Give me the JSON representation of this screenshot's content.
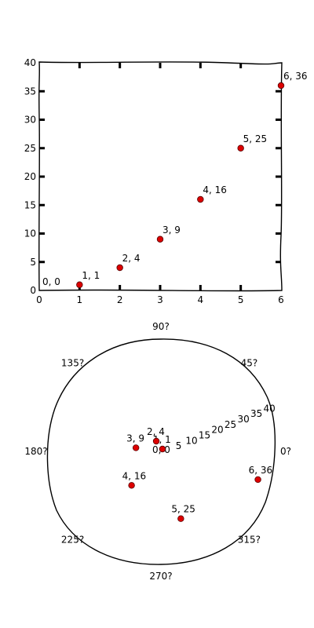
{
  "chart_data": [
    {
      "type": "scatter",
      "title": "",
      "xlabel": "",
      "ylabel": "",
      "xlim": [
        0,
        6
      ],
      "ylim": [
        0,
        40
      ],
      "xticks": [
        "0",
        "1",
        "2",
        "3",
        "4",
        "5",
        "6"
      ],
      "yticks": [
        "0",
        "5",
        "10",
        "15",
        "20",
        "25",
        "30",
        "35",
        "40"
      ],
      "grid": false,
      "points": [
        {
          "x": 0,
          "y": 0,
          "label": "0, 0"
        },
        {
          "x": 1,
          "y": 1,
          "label": "1, 1"
        },
        {
          "x": 2,
          "y": 4,
          "label": "2, 4"
        },
        {
          "x": 3,
          "y": 9,
          "label": "3, 9"
        },
        {
          "x": 4,
          "y": 16,
          "label": "4, 16"
        },
        {
          "x": 5,
          "y": 25,
          "label": "5, 25"
        },
        {
          "x": 6,
          "y": 36,
          "label": "6, 36"
        }
      ]
    },
    {
      "type": "scatter",
      "projection": "polar",
      "title": "",
      "theta_unit": "radians",
      "rlim": [
        0,
        40
      ],
      "rticks": [
        "5",
        "10",
        "15",
        "20",
        "25",
        "30",
        "35",
        "40"
      ],
      "theta_ticks": [
        "0?",
        "45?",
        "90?",
        "135?",
        "180?",
        "225?",
        "270?",
        "315?"
      ],
      "points": [
        {
          "theta": 0,
          "r": 0,
          "label": "0, 0"
        },
        {
          "theta": 1,
          "r": 1,
          "label": "1, 1"
        },
        {
          "theta": 2,
          "r": 4,
          "label": "2, 4"
        },
        {
          "theta": 3,
          "r": 9,
          "label": "3, 9"
        },
        {
          "theta": 4,
          "r": 16,
          "label": "4, 16"
        },
        {
          "theta": 5,
          "r": 25,
          "label": "5, 25"
        },
        {
          "theta": 6,
          "r": 36,
          "label": "6, 36"
        }
      ]
    }
  ]
}
